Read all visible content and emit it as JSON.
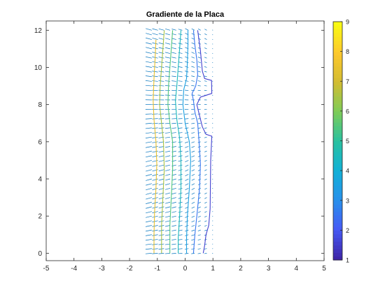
{
  "chart_data": {
    "type": "contour",
    "title": "Gradiente de la Placa",
    "xlabel": "",
    "ylabel": "",
    "xlim": [
      -5,
      5
    ],
    "ylim": [
      -0.4,
      12.5
    ],
    "xticks": [
      -5,
      -4,
      -3,
      -2,
      -1,
      0,
      1,
      2,
      3,
      4,
      5
    ],
    "yticks": [
      0,
      2,
      4,
      6,
      8,
      10,
      12
    ],
    "grid": false,
    "colorbar": {
      "colormap": "parula",
      "range": [
        1,
        9
      ],
      "ticks": [
        1,
        2,
        3,
        4,
        5,
        6,
        7,
        8,
        9
      ]
    },
    "plate": {
      "x_range": [
        -1.2,
        1.0
      ],
      "y_range": [
        0,
        12
      ]
    },
    "quiver": {
      "color": "#0072BD",
      "x_range": [
        -1.2,
        1.0
      ],
      "y_range": [
        0,
        12
      ]
    },
    "contours": [
      {
        "level": 1.5,
        "points": [
          [
            0.45,
            12.0
          ],
          [
            0.55,
            10.9
          ],
          [
            0.62,
            9.8
          ],
          [
            0.7,
            9.4
          ],
          [
            0.95,
            9.3
          ],
          [
            0.96,
            8.6
          ],
          [
            0.55,
            8.4
          ],
          [
            0.42,
            8.0
          ],
          [
            0.52,
            7.4
          ],
          [
            0.62,
            6.8
          ],
          [
            0.75,
            6.4
          ],
          [
            0.96,
            6.3
          ],
          [
            0.92,
            5.0
          ],
          [
            0.9,
            2.4
          ],
          [
            0.85,
            1.5
          ],
          [
            0.75,
            1.0
          ],
          [
            0.7,
            0.4
          ],
          [
            0.65,
            0.0
          ]
        ]
      },
      {
        "level": 2.5,
        "points": [
          [
            0.3,
            12.0
          ],
          [
            0.35,
            11.2
          ],
          [
            0.42,
            10.4
          ],
          [
            0.45,
            9.6
          ],
          [
            0.38,
            9.0
          ],
          [
            0.25,
            8.6
          ],
          [
            0.3,
            8.2
          ],
          [
            0.35,
            7.6
          ],
          [
            0.45,
            7.0
          ],
          [
            0.5,
            6.0
          ],
          [
            0.55,
            4.8
          ],
          [
            0.52,
            3.5
          ],
          [
            0.42,
            2.0
          ],
          [
            0.35,
            1.0
          ],
          [
            0.3,
            0.0
          ]
        ]
      },
      {
        "level": 3.5,
        "points": [
          [
            0.1,
            12.0
          ],
          [
            0.1,
            11.2
          ],
          [
            0.08,
            10.3
          ],
          [
            0.05,
            9.4
          ],
          [
            -0.05,
            8.8
          ],
          [
            -0.08,
            8.0
          ],
          [
            0.0,
            7.0
          ],
          [
            0.15,
            6.0
          ],
          [
            0.2,
            5.0
          ],
          [
            0.15,
            3.5
          ],
          [
            0.08,
            2.0
          ],
          [
            0.05,
            0.8
          ],
          [
            0.05,
            0.0
          ]
        ]
      },
      {
        "level": 4.5,
        "points": [
          [
            -0.15,
            12.0
          ],
          [
            -0.2,
            11.0
          ],
          [
            -0.25,
            10.0
          ],
          [
            -0.3,
            9.0
          ],
          [
            -0.35,
            8.2
          ],
          [
            -0.3,
            7.2
          ],
          [
            -0.2,
            6.2
          ],
          [
            -0.15,
            5.0
          ],
          [
            -0.15,
            3.5
          ],
          [
            -0.2,
            2.0
          ],
          [
            -0.25,
            0.8
          ],
          [
            -0.25,
            0.0
          ]
        ]
      },
      {
        "level": 5.5,
        "points": [
          [
            -0.45,
            12.0
          ],
          [
            -0.5,
            11.0
          ],
          [
            -0.55,
            10.0
          ],
          [
            -0.6,
            9.0
          ],
          [
            -0.62,
            8.0
          ],
          [
            -0.55,
            7.0
          ],
          [
            -0.45,
            6.0
          ],
          [
            -0.45,
            4.5
          ],
          [
            -0.5,
            3.0
          ],
          [
            -0.55,
            1.5
          ],
          [
            -0.55,
            0.0
          ]
        ]
      },
      {
        "level": 6.5,
        "points": [
          [
            -0.75,
            12.0
          ],
          [
            -0.8,
            11.0
          ],
          [
            -0.85,
            10.0
          ],
          [
            -0.9,
            9.0
          ],
          [
            -0.92,
            8.0
          ],
          [
            -0.85,
            7.0
          ],
          [
            -0.78,
            6.0
          ],
          [
            -0.75,
            4.5
          ],
          [
            -0.8,
            3.0
          ],
          [
            -0.85,
            1.5
          ],
          [
            -0.85,
            0.0
          ]
        ]
      },
      {
        "level": 7.5,
        "points": [
          [
            -1.05,
            11.5
          ],
          [
            -1.08,
            10.5
          ],
          [
            -1.12,
            9.4
          ],
          [
            -1.15,
            8.2
          ],
          [
            -1.12,
            7.2
          ],
          [
            -1.05,
            6.0
          ],
          [
            -1.02,
            4.8
          ],
          [
            -1.05,
            3.5
          ],
          [
            -1.1,
            2.2
          ],
          [
            -1.12,
            1.0
          ],
          [
            -1.12,
            0.0
          ]
        ]
      }
    ]
  }
}
